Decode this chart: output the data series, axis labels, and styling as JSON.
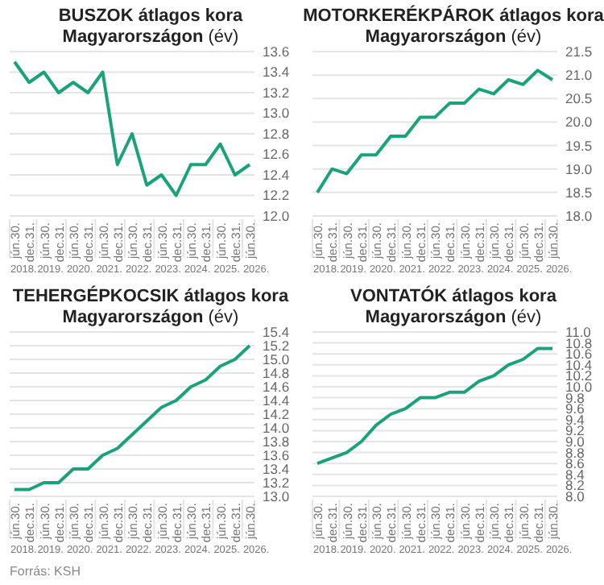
{
  "chart_data": [
    {
      "type": "line",
      "title": "BUSZOK átlagos kora Magyarországon",
      "ylabel": "(év)",
      "categories": [
        "jún.30.",
        "dec.31.",
        "jún.30.",
        "dec.31.",
        "jún.30.",
        "dec.31.",
        "jún.30.",
        "dec.31.",
        "jún.30.",
        "dec.31.",
        "jún.30.",
        "dec.31.",
        "jún.30.",
        "dec.31.",
        "jún.30.",
        "dec.31.",
        "jún.30."
      ],
      "series": [
        {
          "color": "#1aa37a",
          "values": [
            13.5,
            13.3,
            13.4,
            13.2,
            13.3,
            13.2,
            13.4,
            12.5,
            12.8,
            12.3,
            12.4,
            12.2,
            12.5,
            12.5,
            12.7,
            12.4,
            12.5
          ]
        }
      ],
      "ylim": [
        12,
        13.6
      ],
      "yticks": [
        {
          "value": 12,
          "label": "12.0"
        },
        12.2,
        12.4,
        12.6,
        12.8,
        {
          "value": 13,
          "label": "13.0"
        },
        13.2,
        13.4,
        13.6
      ],
      "grid": "y",
      "legend": false,
      "marker": "none",
      "line_style": "solid",
      "annotations": [
        "2018.",
        "2019.",
        "2020.",
        "2021.",
        "2022.",
        "2023.",
        "2024.",
        "2025.",
        "2026."
      ]
    },
    {
      "type": "line",
      "title": "MOTORKERÉKPÁROK átlagos kora Magyarországon",
      "ylabel": "(év)",
      "categories": [
        "jún.30.",
        "dec.31.",
        "jún.30.",
        "dec.31.",
        "jún.30.",
        "dec.31.",
        "jún.30.",
        "dec.31.",
        "jún.30.",
        "dec.31.",
        "jún.30.",
        "dec.31.",
        "jún.30.",
        "dec.31.",
        "jún.30.",
        "dec.31.",
        "jún.30."
      ],
      "series": [
        {
          "color": "#1aa37a",
          "values": [
            18.5,
            19.0,
            18.9,
            19.3,
            19.3,
            19.7,
            19.7,
            20.1,
            20.1,
            20.4,
            20.4,
            20.7,
            20.6,
            20.9,
            20.8,
            21.1,
            20.9
          ]
        }
      ],
      "ylim": [
        18,
        21.5
      ],
      "yticks": [
        {
          "value": 18,
          "label": "18.0"
        },
        18.5,
        {
          "value": 19,
          "label": "19.0"
        },
        19.5,
        {
          "value": 20,
          "label": "20.0"
        },
        20.5,
        {
          "value": 21,
          "label": "21.0"
        },
        21.5
      ],
      "grid": "y",
      "legend": false,
      "marker": "none",
      "line_style": "solid",
      "annotations": [
        "2018.",
        "2019.",
        "2020.",
        "2021.",
        "2022.",
        "2023.",
        "2024.",
        "2025.",
        "2026."
      ]
    },
    {
      "type": "line",
      "title": "TEHERGÉPKOCSIK átlagos kora Magyarországon",
      "ylabel": "(év)",
      "categories": [
        "jún.30.",
        "dec.31.",
        "jún.30.",
        "dec.31.",
        "jún.30.",
        "dec.31.",
        "jún.30.",
        "dec.31.",
        "jún.30.",
        "dec.31.",
        "jún.30.",
        "dec.31.",
        "jún.30.",
        "dec.31.",
        "jún.30.",
        "dec.31.",
        "jún.30."
      ],
      "series": [
        {
          "color": "#1aa37a",
          "values": [
            13.1,
            13.1,
            13.2,
            13.2,
            13.4,
            13.4,
            13.6,
            13.7,
            13.9,
            14.1,
            14.3,
            14.4,
            14.6,
            14.7,
            14.9,
            15.0,
            15.2
          ]
        }
      ],
      "ylim": [
        13,
        15.4
      ],
      "yticks": [
        {
          "value": 13,
          "label": "13.0"
        },
        13.2,
        13.4,
        13.6,
        13.8,
        {
          "value": 14,
          "label": "14.0"
        },
        14.2,
        14.4,
        14.6,
        14.8,
        {
          "value": 15,
          "label": "15.0"
        },
        15.2,
        15.4
      ],
      "grid": "y",
      "legend": false,
      "marker": "none",
      "line_style": "solid",
      "annotations": [
        "2018.",
        "2019.",
        "2020.",
        "2021.",
        "2022.",
        "2023.",
        "2024.",
        "2025.",
        "2026.",
        "Forrás: KSH"
      ]
    },
    {
      "type": "line",
      "title": "VONTATÓK átlagos kora Magyarországon",
      "ylabel": "(év)",
      "categories": [
        "jún.30.",
        "dec.31.",
        "jún.30.",
        "dec.31.",
        "jún.30.",
        "dec.31.",
        "jún.30.",
        "dec.31.",
        "jún.30.",
        "dec.31.",
        "jún.30.",
        "dec.31.",
        "jún.30.",
        "dec.31.",
        "jún.30.",
        "dec.31.",
        "jún.30."
      ],
      "series": [
        {
          "color": "#1aa37a",
          "values": [
            8.6,
            8.7,
            8.8,
            9.0,
            9.3,
            9.5,
            9.6,
            9.8,
            9.8,
            9.9,
            9.9,
            10.1,
            10.2,
            10.4,
            10.5,
            10.7,
            10.7
          ]
        }
      ],
      "ylim": [
        8,
        11
      ],
      "yticks": [
        {
          "value": 8,
          "label": "8.0"
        },
        8.2,
        8.4,
        8.6,
        8.8,
        {
          "value": 9,
          "label": "9.0"
        },
        9.2,
        9.4,
        9.6,
        9.8,
        {
          "value": 10,
          "label": "10.0"
        },
        10.2,
        10.4,
        10.6,
        10.8,
        {
          "value": 11,
          "label": "11.0"
        }
      ],
      "grid": "y",
      "legend": false,
      "marker": "none",
      "line_style": "solid",
      "annotations": [
        "2018.",
        "2019.",
        "2020.",
        "2021.",
        "2022.",
        "2023.",
        "2024.",
        "2025.",
        "2026."
      ]
    }
  ]
}
